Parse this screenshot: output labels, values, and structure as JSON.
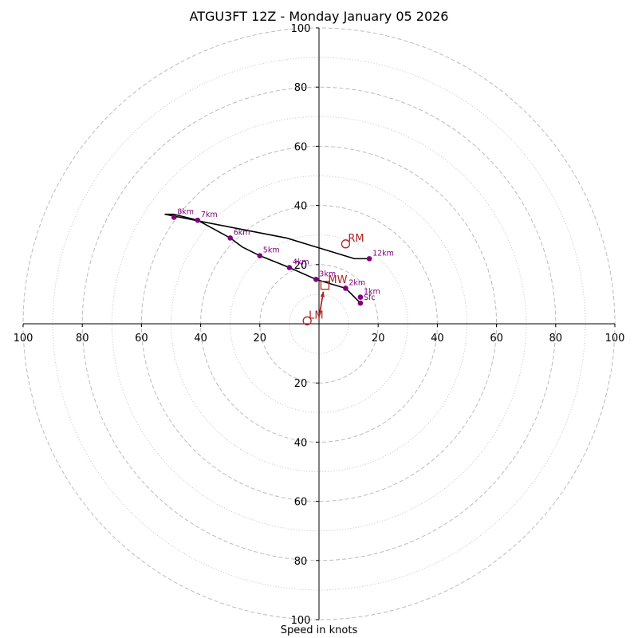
{
  "chart_data": {
    "type": "hodograph",
    "title": "ATGU3FT 12Z - Monday January 05 2026",
    "xlabel": "Speed in knots",
    "range": [
      0,
      100
    ],
    "rings_major": [
      20,
      40,
      60,
      80,
      100
    ],
    "rings_minor": [
      10,
      30,
      50,
      70,
      90
    ],
    "axis_tick_labels": [
      "20",
      "40",
      "60",
      "80",
      "100"
    ],
    "grid": true,
    "colors": {
      "hodograph": "#000000",
      "points": "#800080",
      "storm_motion": "#b22222",
      "grid": "#bbbbbb"
    },
    "hodograph_line": [
      [
        14,
        7
      ],
      [
        9,
        12
      ],
      [
        -1,
        15
      ],
      [
        -10,
        19
      ],
      [
        -20,
        23
      ],
      [
        -26,
        26
      ],
      [
        -30,
        29
      ],
      [
        -41,
        35
      ],
      [
        -49,
        37
      ],
      [
        -52,
        37
      ],
      [
        -42,
        35
      ],
      [
        -11,
        29
      ],
      [
        12,
        22
      ],
      [
        17,
        22
      ]
    ],
    "levels": [
      {
        "label": "Sfc",
        "u": 14,
        "v": 7
      },
      {
        "label": "1km",
        "u": 14,
        "v": 9
      },
      {
        "label": "2km",
        "u": 9,
        "v": 12
      },
      {
        "label": "3km",
        "u": -1,
        "v": 15
      },
      {
        "label": "4km",
        "u": -10,
        "v": 19
      },
      {
        "label": "5km",
        "u": -20,
        "v": 23
      },
      {
        "label": "6km",
        "u": -30,
        "v": 29
      },
      {
        "label": "7km",
        "u": -41,
        "v": 35
      },
      {
        "label": "8km",
        "u": -49,
        "v": 36
      },
      {
        "label": "12km",
        "u": 17,
        "v": 22
      }
    ],
    "storm_motion": {
      "rm": {
        "label": "RM",
        "u": 9,
        "v": 27
      },
      "lm": {
        "label": "LM",
        "u": -4,
        "v": 1
      },
      "mw": {
        "label": "MW",
        "u": 2,
        "v": 13
      }
    }
  }
}
